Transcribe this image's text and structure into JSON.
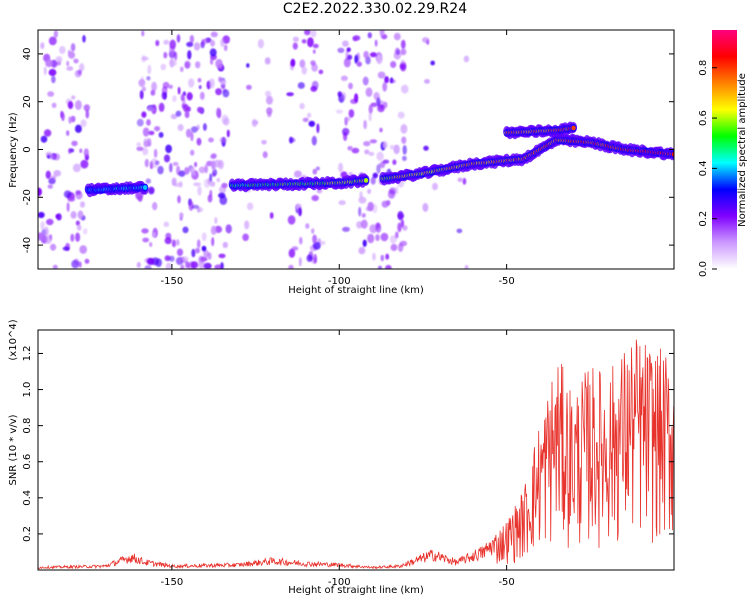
{
  "title": "C2E2.2022.330.02.29.R24",
  "chart_data": [
    {
      "type": "heatmap",
      "name": "spectrogram",
      "xlabel": "Height of straight line (km)",
      "ylabel": "Frequency (Hz)",
      "xlim": [
        -190,
        0
      ],
      "ylim": [
        -50,
        50
      ],
      "xticks": [
        -150,
        -100,
        -50
      ],
      "yticks": [
        -40,
        -20,
        0,
        20,
        40
      ],
      "colorbar": {
        "label": "Normalized spectral amplitude",
        "range": [
          0,
          0.95
        ],
        "ticks": [
          "0.0",
          "0.2",
          "0.4",
          "0.6",
          "0.8"
        ],
        "colors": [
          "#ffffff",
          "#cc99ff",
          "#8000ff",
          "#0000ff",
          "#00ffff",
          "#00ff00",
          "#ffff00",
          "#ff8000",
          "#ff0000",
          "#ff0080"
        ]
      },
      "ridge": [
        {
          "x": -175,
          "y": -17
        },
        {
          "x": -160,
          "y": -16
        },
        {
          "x": -130,
          "y": -15
        },
        {
          "x": -100,
          "y": -14
        },
        {
          "x": -85,
          "y": -12
        },
        {
          "x": -75,
          "y": -10
        },
        {
          "x": -60,
          "y": -6
        },
        {
          "x": -45,
          "y": -4
        },
        {
          "x": -35,
          "y": 4
        },
        {
          "x": -25,
          "y": 3
        },
        {
          "x": -15,
          "y": 0
        },
        {
          "x": 0,
          "y": -2
        }
      ],
      "upper_branch": [
        {
          "x": -50,
          "y": 7
        },
        {
          "x": -35,
          "y": 8
        },
        {
          "x": -30,
          "y": 9
        }
      ]
    },
    {
      "type": "line",
      "name": "snr",
      "xlabel": "Height of straight line (km)",
      "ylabel": "SNR (10 * v/v)",
      "y_multiplier": "(x10^4)",
      "xlim": [
        -190,
        0
      ],
      "ylim": [
        0,
        1.33
      ],
      "xticks": [
        -150,
        -100,
        -50
      ],
      "yticks": [
        0.2,
        0.4,
        0.6,
        0.8,
        1.0,
        1.2
      ],
      "ytick_labels": [
        "0.2",
        "0.4",
        "0.6",
        "0.8",
        "1.0",
        "1.2"
      ],
      "color": "#e8322c",
      "series": [
        {
          "envelope": [
            [
              -190,
              0.02
            ],
            [
              -170,
              0.03
            ],
            [
              -162,
              0.1
            ],
            [
              -158,
              0.06
            ],
            [
              -150,
              0.03
            ],
            [
              -130,
              0.04
            ],
            [
              -120,
              0.07
            ],
            [
              -110,
              0.05
            ],
            [
              -100,
              0.04
            ],
            [
              -90,
              0.02
            ],
            [
              -82,
              0.03
            ],
            [
              -72,
              0.12
            ],
            [
              -65,
              0.06
            ],
            [
              -57,
              0.14
            ],
            [
              -50,
              0.28
            ],
            [
              -45,
              0.45
            ],
            [
              -40,
              0.85
            ],
            [
              -35,
              1.2
            ],
            [
              -30,
              1.0
            ],
            [
              -25,
              1.15
            ],
            [
              -20,
              1.1
            ],
            [
              -12,
              1.32
            ],
            [
              -6,
              1.25
            ],
            [
              0,
              1.18
            ]
          ]
        }
      ]
    }
  ]
}
